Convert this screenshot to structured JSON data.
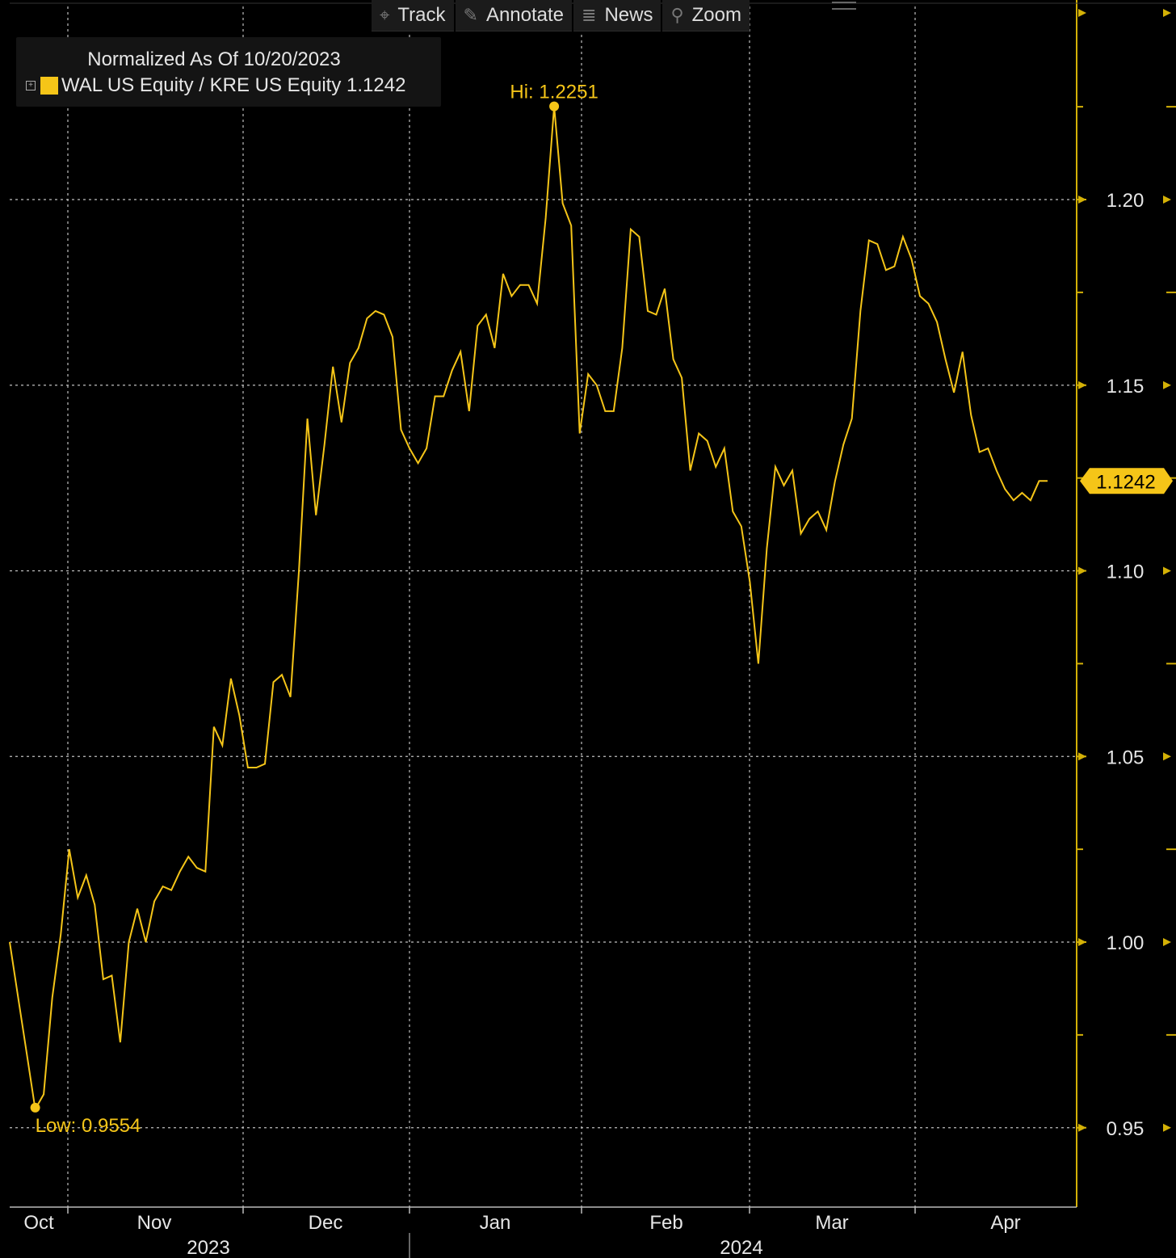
{
  "toolbar": {
    "track": {
      "label": "Track",
      "icon": "crosshair-icon"
    },
    "annotate": {
      "label": "Annotate",
      "icon": "pencil-icon"
    },
    "news": {
      "label": "News",
      "icon": "news-icon"
    },
    "zoom": {
      "label": "Zoom",
      "icon": "magnifier-icon"
    }
  },
  "legend": {
    "title": "Normalized As Of 10/20/2023",
    "series_label": "WAL US Equity / KRE US Equity 1.1242"
  },
  "colors": {
    "background": "#000000",
    "line": "#f5c518",
    "grid": "#bfbfbf",
    "axis": "#d4b106"
  },
  "chart_data": {
    "type": "line",
    "title": "Normalized As Of 10/20/2023",
    "series": [
      {
        "name": "WAL US Equity / KRE US Equity",
        "last_value": 1.1242,
        "values": [
          1.0,
          0.985,
          0.97,
          0.955,
          0.959,
          0.985,
          1.002,
          1.025,
          1.012,
          1.018,
          1.01,
          0.99,
          0.991,
          0.973,
          1.0,
          1.009,
          1.0,
          1.011,
          1.015,
          1.014,
          1.019,
          1.023,
          1.02,
          1.019,
          1.058,
          1.053,
          1.071,
          1.061,
          1.047,
          1.047,
          1.048,
          1.07,
          1.072,
          1.066,
          1.1,
          1.141,
          1.115,
          1.134,
          1.155,
          1.14,
          1.156,
          1.16,
          1.168,
          1.17,
          1.169,
          1.163,
          1.138,
          1.133,
          1.129,
          1.133,
          1.147,
          1.147,
          1.154,
          1.159,
          1.143,
          1.166,
          1.169,
          1.16,
          1.18,
          1.174,
          1.177,
          1.177,
          1.172,
          1.195,
          1.2251,
          1.199,
          1.193,
          1.137,
          1.153,
          1.15,
          1.143,
          1.143,
          1.16,
          1.192,
          1.19,
          1.17,
          1.169,
          1.176,
          1.157,
          1.152,
          1.127,
          1.137,
          1.135,
          1.128,
          1.133,
          1.116,
          1.112,
          1.097,
          1.075,
          1.106,
          1.128,
          1.123,
          1.127,
          1.11,
          1.114,
          1.116,
          1.111,
          1.124,
          1.134,
          1.141,
          1.17,
          1.189,
          1.188,
          1.181,
          1.182,
          1.19,
          1.184,
          1.174,
          1.172,
          1.167,
          1.157,
          1.148,
          1.159,
          1.142,
          1.132,
          1.133,
          1.127,
          1.122,
          1.119,
          1.121,
          1.119,
          1.1242,
          1.1242
        ]
      }
    ],
    "xlabel": "",
    "ylabel": "",
    "ylim": [
      0.935,
      1.258
    ],
    "y_ticks": [
      "1.20",
      "1.15",
      "1.10",
      "1.05",
      "1.00",
      "0.95"
    ],
    "x_month_ticks": [
      "Oct",
      "Nov",
      "Dec",
      "Jan",
      "Feb",
      "Mar",
      "Apr"
    ],
    "x_year_labels": [
      "2023",
      "2024"
    ],
    "annotations": {
      "high": {
        "label": "Hi: 1.2251",
        "value": 1.2251
      },
      "low": {
        "label": "Low: 0.9554",
        "value": 0.9554
      },
      "last": {
        "label": "1.1242",
        "value": 1.1242
      }
    },
    "grid": true,
    "legend_position": "top-left"
  }
}
